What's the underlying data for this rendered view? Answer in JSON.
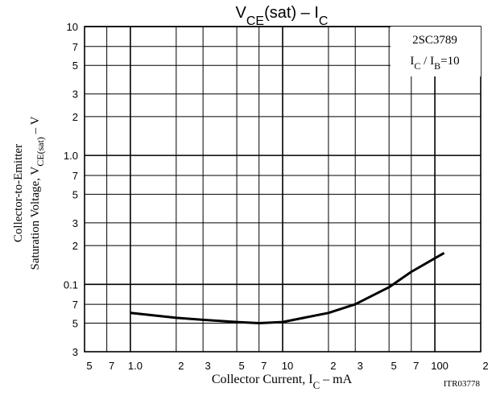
{
  "chart_data": {
    "type": "line",
    "title": [
      "V",
      "CE",
      "(sat) – I",
      "C"
    ],
    "x_label": [
      "Collector Current, I",
      "C",
      " –  mA"
    ],
    "y_label_line1": "Collector-to-Emitter",
    "y_label_line2": [
      "Saturation Voltage, V",
      "CE(sat)",
      " – V"
    ],
    "annotation_part": "2SC3789",
    "annotation_condition": [
      "I",
      "C",
      " / I",
      "B",
      "=10"
    ],
    "footer": "ITR03778",
    "log_x": true,
    "log_y": true,
    "grid": true,
    "xlim": [
      0.5,
      200
    ],
    "ylim": [
      0.03,
      10
    ],
    "xticks": [
      {
        "value": 0.5,
        "label": "5"
      },
      {
        "value": 0.7,
        "label": "7"
      },
      {
        "value": 1,
        "label": "1.0"
      },
      2,
      3,
      5,
      7,
      10,
      {
        "value": 20,
        "label": "2"
      },
      {
        "value": 30,
        "label": "3"
      },
      {
        "value": 50,
        "label": "5"
      },
      {
        "value": 70,
        "label": "7"
      },
      100,
      {
        "value": 200,
        "label": "2"
      }
    ],
    "yticks": [
      {
        "value": 0.03,
        "label": "3"
      },
      {
        "value": 0.05,
        "label": "5"
      },
      {
        "value": 0.07,
        "label": "7"
      },
      0.1,
      {
        "value": 0.2,
        "label": "2"
      },
      {
        "value": 0.3,
        "label": "3"
      },
      {
        "value": 0.5,
        "label": "5"
      },
      {
        "value": 0.7,
        "label": "7"
      },
      {
        "value": 1,
        "label": "1.0"
      },
      2,
      3,
      5,
      7,
      10
    ],
    "series": [
      {
        "name": "2SC3789",
        "color": "#000000",
        "x": [
          1.0,
          2,
          3,
          5,
          7,
          10,
          20,
          30,
          50,
          70,
          115
        ],
        "values": [
          0.06,
          0.055,
          0.053,
          0.051,
          0.05,
          0.051,
          0.06,
          0.07,
          0.095,
          0.125,
          0.175
        ]
      }
    ]
  }
}
